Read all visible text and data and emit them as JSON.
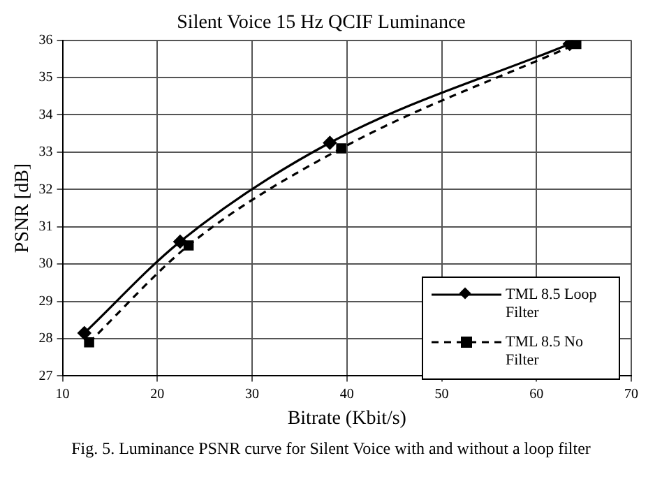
{
  "chart_data": {
    "type": "line",
    "title": "Silent Voice 15 Hz QCIF Luminance",
    "xlabel": "Bitrate (Kbit/s)",
    "ylabel": "PSNR [dB]",
    "xlim": [
      10,
      70
    ],
    "xticks": [
      10,
      20,
      30,
      40,
      50,
      60,
      70
    ],
    "ylim": [
      27,
      36
    ],
    "yticks": [
      27,
      28,
      29,
      30,
      31,
      32,
      33,
      34,
      35,
      36
    ],
    "grid": true,
    "legend": "bottom right",
    "series": [
      {
        "name": "TML 8.5 Loop Filter",
        "color": "#000000",
        "marker": "diamond",
        "line_style": "solid",
        "x": [
          12.3,
          22.4,
          38.2,
          63.5
        ],
        "values": [
          28.15,
          30.6,
          33.25,
          35.9
        ]
      },
      {
        "name": "TML 8.5 No Filter",
        "color": "#000000",
        "marker": "square",
        "line_style": "dashed",
        "x": [
          12.8,
          23.3,
          39.4,
          64.2
        ],
        "values": [
          27.9,
          30.5,
          33.1,
          35.9
        ]
      }
    ],
    "annotations": [
      "Fig. 5.   Luminance PSNR curve for Silent Voice with and without a loop filter"
    ]
  }
}
